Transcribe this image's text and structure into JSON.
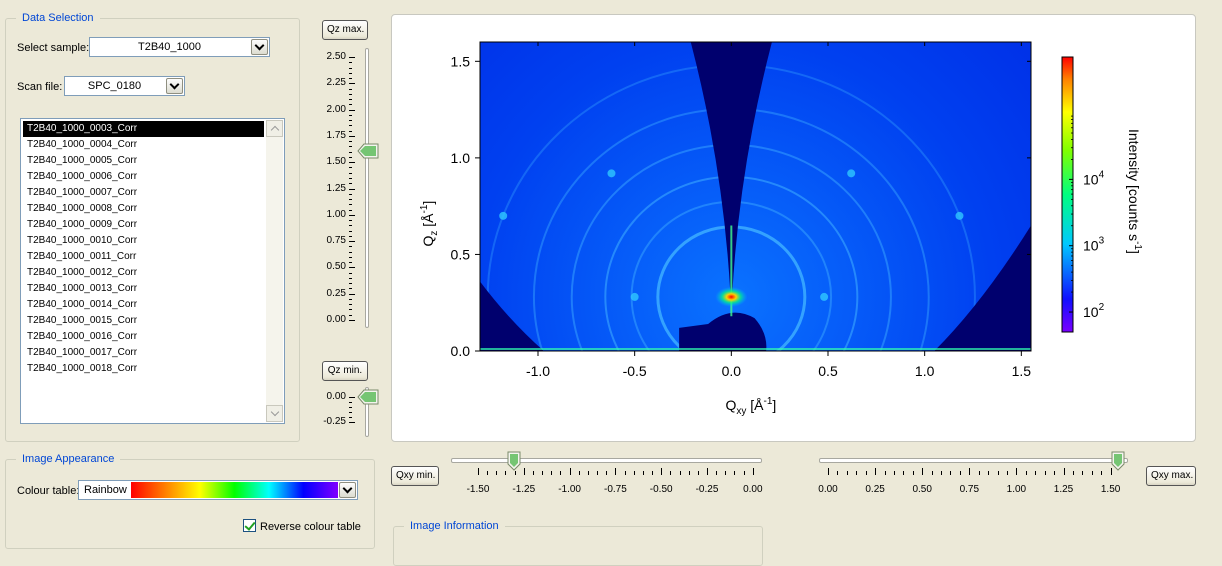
{
  "data_selection": {
    "title": "Data Selection",
    "select_sample_label": "Select sample:",
    "select_sample_value": "T2B40_1000",
    "scan_file_label": "Scan file:",
    "scan_file_value": "SPC_0180",
    "files": [
      "T2B40_1000_0003_Corr",
      "T2B40_1000_0004_Corr",
      "T2B40_1000_0005_Corr",
      "T2B40_1000_0006_Corr",
      "T2B40_1000_0007_Corr",
      "T2B40_1000_0008_Corr",
      "T2B40_1000_0009_Corr",
      "T2B40_1000_0010_Corr",
      "T2B40_1000_0011_Corr",
      "T2B40_1000_0012_Corr",
      "T2B40_1000_0013_Corr",
      "T2B40_1000_0014_Corr",
      "T2B40_1000_0015_Corr",
      "T2B40_1000_0016_Corr",
      "T2B40_1000_0017_Corr",
      "T2B40_1000_0018_Corr"
    ],
    "selected_file_index": 0
  },
  "image_appearance": {
    "title": "Image Appearance",
    "colour_table_label": "Colour table:",
    "colour_table_value": "Rainbow",
    "reverse_label": "Reverse colour table",
    "reverse_checked": true
  },
  "image_information": {
    "title": "Image Information"
  },
  "qz_controls": {
    "max_button": "Qz max.",
    "min_button": "Qz min.",
    "max_ticks": [
      "2.50",
      "2.25",
      "2.00",
      "1.75",
      "1.50",
      "1.25",
      "1.00",
      "0.75",
      "0.50",
      "0.25",
      "0.00"
    ],
    "max_value": 1.6,
    "min_ticks": [
      "0.00",
      "-0.25"
    ],
    "min_value": 0.0
  },
  "qxy_controls": {
    "min_button": "Qxy min.",
    "max_button": "Qxy max.",
    "min_ticks": [
      "-1.50",
      "-1.25",
      "-1.00",
      "-0.75",
      "-0.50",
      "-0.25",
      "0.00"
    ],
    "min_value": -1.3,
    "max_ticks": [
      "0.00",
      "0.25",
      "0.50",
      "0.75",
      "1.00",
      "1.25",
      "1.50"
    ],
    "max_value": 1.55
  },
  "chart_data": {
    "type": "heatmap",
    "x_ticks": [
      "-1.0",
      "-0.5",
      "0.0",
      "0.5",
      "1.0",
      "1.5"
    ],
    "x_tick_values": [
      -1.0,
      -0.5,
      0.0,
      0.5,
      1.0,
      1.5
    ],
    "y_ticks": [
      "0.0",
      "0.5",
      "1.0",
      "1.5"
    ],
    "y_tick_values": [
      0.0,
      0.5,
      1.0,
      1.5
    ],
    "xlim": [
      -1.3,
      1.55
    ],
    "ylim": [
      0.0,
      1.6
    ],
    "xlabel_main": "Q",
    "xlabel_sub": "xy",
    "xlabel_unit": " [Å",
    "xlabel_exp": "-1",
    "xlabel_close": "]",
    "ylabel_main": "Q",
    "ylabel_sub": "z",
    "ylabel_unit": " [Å",
    "ylabel_exp": "-1",
    "ylabel_close": "]",
    "colorbar_label": "Intensity [counts s",
    "colorbar_exp": "-1",
    "colorbar_close": "]",
    "colorbar_ticks": [
      {
        "base": "10",
        "exp": "4",
        "value": 10000
      },
      {
        "base": "10",
        "exp": "3",
        "value": 1000
      },
      {
        "base": "10",
        "exp": "2",
        "value": 100
      }
    ],
    "colorbar_range": [
      50,
      700000
    ],
    "colorbar_scale": "log",
    "colormap": "rainbow"
  }
}
